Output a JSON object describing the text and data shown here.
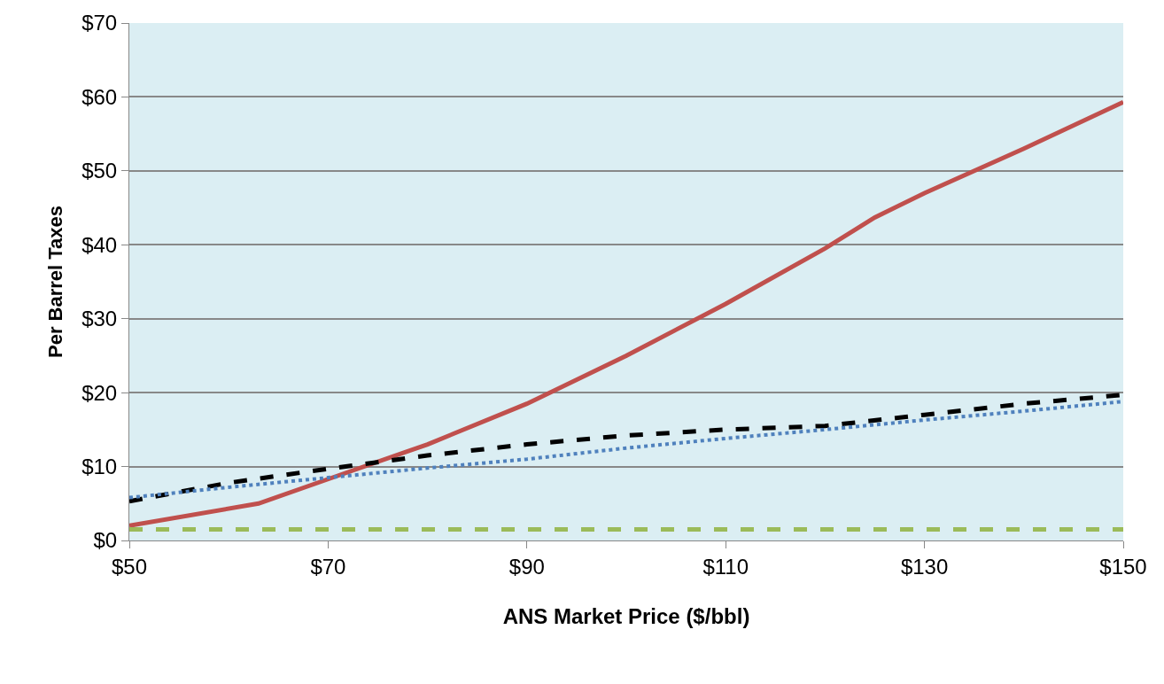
{
  "chart_data": {
    "type": "line",
    "xlabel": "ANS Market Price ($/bbl)",
    "ylabel": "Per Barrel Taxes",
    "series": [
      {
        "color": "#c0504d",
        "line_style": "solid",
        "x": [
          50,
          63,
          70,
          80,
          90,
          100,
          110,
          120,
          125,
          130,
          140,
          150
        ],
        "values": [
          2,
          5,
          8.3,
          13,
          18.5,
          25,
          32,
          39.5,
          43.7,
          47,
          53,
          59.3
        ]
      },
      {
        "color": "#000000",
        "line_style": "dashed",
        "x": [
          50,
          60,
          70,
          80,
          90,
          100,
          110,
          120,
          130,
          140,
          150
        ],
        "values": [
          5.3,
          7.8,
          9.7,
          11.5,
          13,
          14.2,
          15,
          15.5,
          17,
          18.5,
          19.7
        ]
      },
      {
        "color": "#4f81bd",
        "line_style": "dotted",
        "x": [
          50,
          60,
          70,
          80,
          90,
          100,
          110,
          120,
          130,
          140,
          150
        ],
        "values": [
          5.8,
          7.2,
          8.5,
          9.8,
          11,
          12.5,
          13.8,
          15,
          16.3,
          17.5,
          18.8
        ]
      },
      {
        "color": "#9bbb59",
        "line_style": "dashed",
        "x": [
          50,
          150
        ],
        "values": [
          1.5,
          1.5
        ]
      }
    ],
    "xlim": [
      50,
      150
    ],
    "xticks": [
      {
        "value": 50,
        "label": "$50"
      },
      {
        "value": 70,
        "label": "$70"
      },
      {
        "value": 90,
        "label": "$90"
      },
      {
        "value": 110,
        "label": "$110"
      },
      {
        "value": 130,
        "label": "$130"
      },
      {
        "value": 150,
        "label": "$150"
      }
    ],
    "ylim": [
      0,
      70
    ],
    "yticks": [
      {
        "value": 0,
        "label": "$0"
      },
      {
        "value": 10,
        "label": "$10"
      },
      {
        "value": 20,
        "label": "$20"
      },
      {
        "value": 30,
        "label": "$30"
      },
      {
        "value": 40,
        "label": "$40"
      },
      {
        "value": 50,
        "label": "$50"
      },
      {
        "value": 60,
        "label": "$60"
      },
      {
        "value": 70,
        "label": "$70"
      }
    ],
    "grid": "y",
    "marker": "none"
  }
}
